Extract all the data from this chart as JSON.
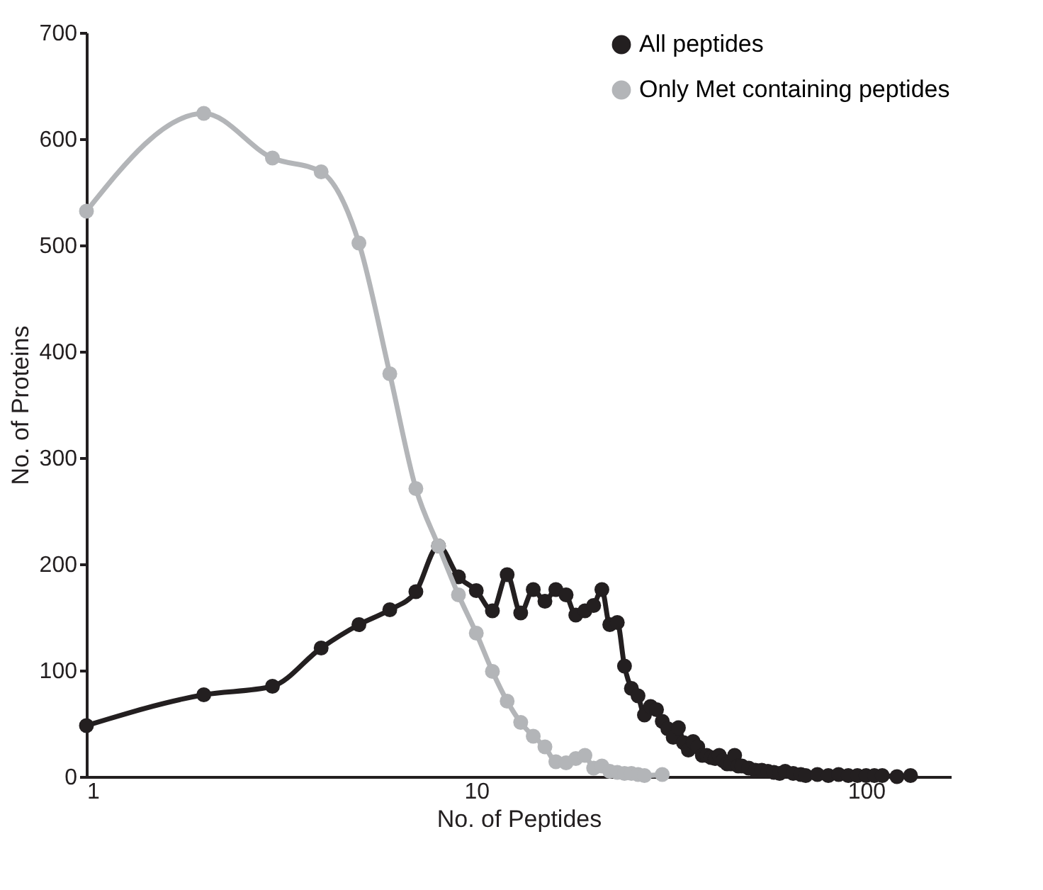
{
  "chart_data": {
    "type": "line",
    "xlabel": "No. of Peptides",
    "ylabel": "No. of Proteins",
    "log": "x",
    "xlim": [
      1,
      165
    ],
    "xticks": [
      1,
      10,
      100
    ],
    "ylim": [
      0,
      700
    ],
    "yticks": [
      0,
      100,
      200,
      300,
      400,
      500,
      600,
      700
    ],
    "grid": false,
    "legend": "top right",
    "marker": "circle",
    "line_style": "solid",
    "series": [
      {
        "name": "All peptides",
        "color": "#231f20",
        "x": [
          1,
          2,
          3,
          4,
          5,
          6,
          7,
          8,
          9,
          10,
          11,
          12,
          13,
          14,
          15,
          16,
          17,
          18,
          19,
          20,
          21,
          22,
          23,
          24,
          25,
          26,
          27,
          28,
          29,
          30,
          31,
          32,
          33,
          34,
          35,
          36,
          37,
          38,
          39,
          40,
          41,
          42,
          43,
          44,
          45,
          46,
          47,
          48,
          50,
          52,
          54,
          56,
          58,
          60,
          62,
          65,
          68,
          70,
          75,
          80,
          85,
          90,
          95,
          100,
          105,
          110,
          120,
          130
        ],
        "values": [
          48,
          77,
          85,
          121,
          143,
          157,
          174,
          217,
          188,
          175,
          156,
          190,
          154,
          176,
          165,
          176,
          171,
          152,
          156,
          161,
          176,
          143,
          145,
          104,
          83,
          76,
          58,
          66,
          63,
          52,
          45,
          37,
          46,
          32,
          25,
          33,
          28,
          20,
          20,
          18,
          17,
          20,
          15,
          12,
          12,
          20,
          10,
          10,
          8,
          6,
          6,
          5,
          4,
          3,
          5,
          3,
          2,
          1,
          2,
          1,
          2,
          1,
          1,
          1,
          1,
          1,
          0,
          1
        ]
      },
      {
        "name": "Only Met containing peptides",
        "color": "#b3b5b8",
        "x": [
          1,
          2,
          3,
          4,
          5,
          6,
          7,
          8,
          9,
          10,
          11,
          12,
          13,
          14,
          15,
          16,
          17,
          18,
          19,
          20,
          21,
          22,
          23,
          24,
          25,
          26,
          27,
          30
        ],
        "values": [
          532,
          624,
          582,
          569,
          502,
          379,
          271,
          217,
          171,
          135,
          99,
          71,
          51,
          38,
          28,
          14,
          13,
          17,
          20,
          8,
          10,
          5,
          4,
          3,
          3,
          2,
          1,
          2
        ]
      }
    ]
  }
}
